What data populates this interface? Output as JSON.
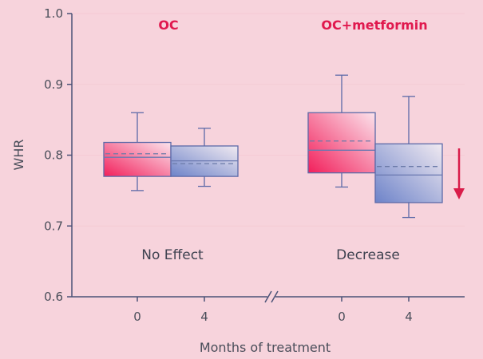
{
  "chart_data": {
    "type": "boxplot",
    "ylabel": "WHR",
    "xlabel": "Months of treatment",
    "ylim": [
      0.6,
      1.0
    ],
    "yticks": [
      "0.6",
      "0.7",
      "0.8",
      "0.9",
      "1.0"
    ],
    "groups": [
      {
        "title": "OC",
        "annotation": "No Effect",
        "boxes": [
          {
            "x_label": "0",
            "whisker_low": 0.75,
            "q1": 0.77,
            "median": 0.797,
            "mean": 0.802,
            "q3": 0.818,
            "whisker_high": 0.86,
            "fill": "pink"
          },
          {
            "x_label": "4",
            "whisker_low": 0.756,
            "q1": 0.77,
            "median": 0.792,
            "mean": 0.788,
            "q3": 0.813,
            "whisker_high": 0.838,
            "fill": "blue"
          }
        ]
      },
      {
        "title": "OC+metformin",
        "annotation": "Decrease",
        "boxes": [
          {
            "x_label": "0",
            "whisker_low": 0.755,
            "q1": 0.775,
            "median": 0.807,
            "mean": 0.82,
            "q3": 0.86,
            "whisker_high": 0.913,
            "fill": "pink"
          },
          {
            "x_label": "4",
            "whisker_low": 0.712,
            "q1": 0.733,
            "median": 0.772,
            "mean": 0.784,
            "q3": 0.816,
            "whisker_high": 0.883,
            "fill": "blue"
          }
        ]
      }
    ],
    "trend_arrow": "down",
    "axis_break": true,
    "colors": {
      "title": "#e0194e",
      "arrow": "#d91c4a",
      "box_outline": "#5d6aa8",
      "pink_strong": "#f21f5b",
      "pink_light": "#fbe3ec",
      "blue_strong": "#6d83c9",
      "blue_light": "#f1eaf1",
      "mean_line": "#6b7aa8",
      "median_line": "#6a78b0",
      "axis": "#4b5277"
    }
  }
}
